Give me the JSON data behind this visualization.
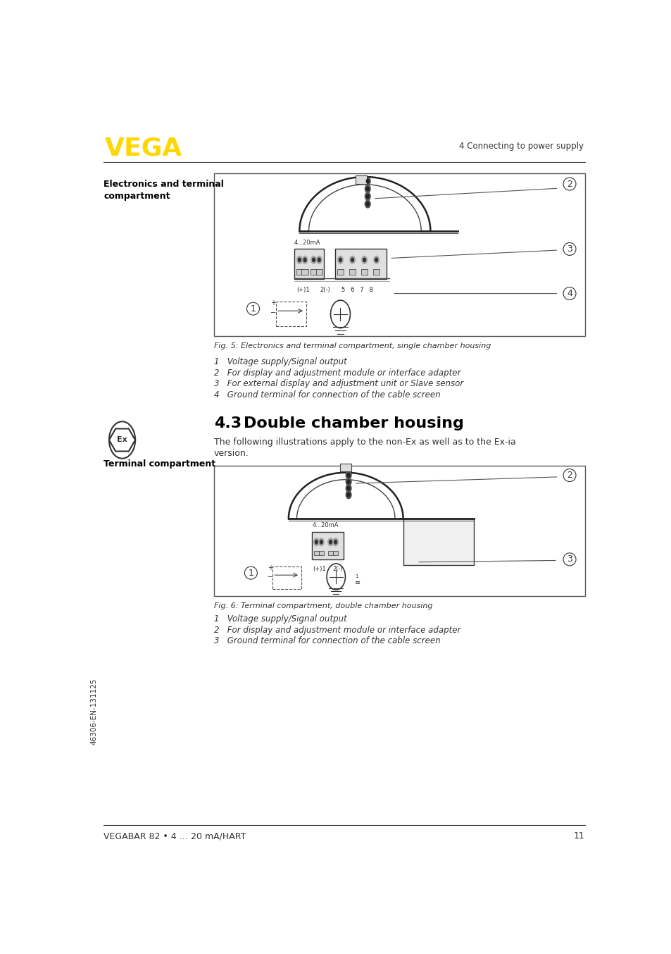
{
  "page_bg": "#ffffff",
  "header_logo_color": "#FFD700",
  "header_logo_text": "VEGA",
  "header_right_text": "4 Connecting to power supply",
  "section1_label": "Electronics and terminal\ncompartment",
  "section43_num": "4.3",
  "section43_title": "Double chamber housing",
  "section43_body1": "The following illustrations apply to the non-Ex as well as to the Ex-ia",
  "section43_body2": "version.",
  "section2_label": "Terminal compartment",
  "fig5_caption": "Fig. 5: Electronics and terminal compartment, single chamber housing",
  "fig5_items": [
    "1   Voltage supply/Signal output",
    "2   For display and adjustment module or interface adapter",
    "3   For external display and adjustment unit or Slave sensor",
    "4   Ground terminal for connection of the cable screen"
  ],
  "fig6_caption": "Fig. 6: Terminal compartment, double chamber housing",
  "fig6_items": [
    "1   Voltage supply/Signal output",
    "2   For display and adjustment module or interface adapter",
    "3   Ground terminal for connection of the cable screen"
  ],
  "footer_left": "46306-EN-131125",
  "footer_bottom_left": "VEGABAR 82 • 4 … 20 mA/HART",
  "footer_bottom_right": "11"
}
